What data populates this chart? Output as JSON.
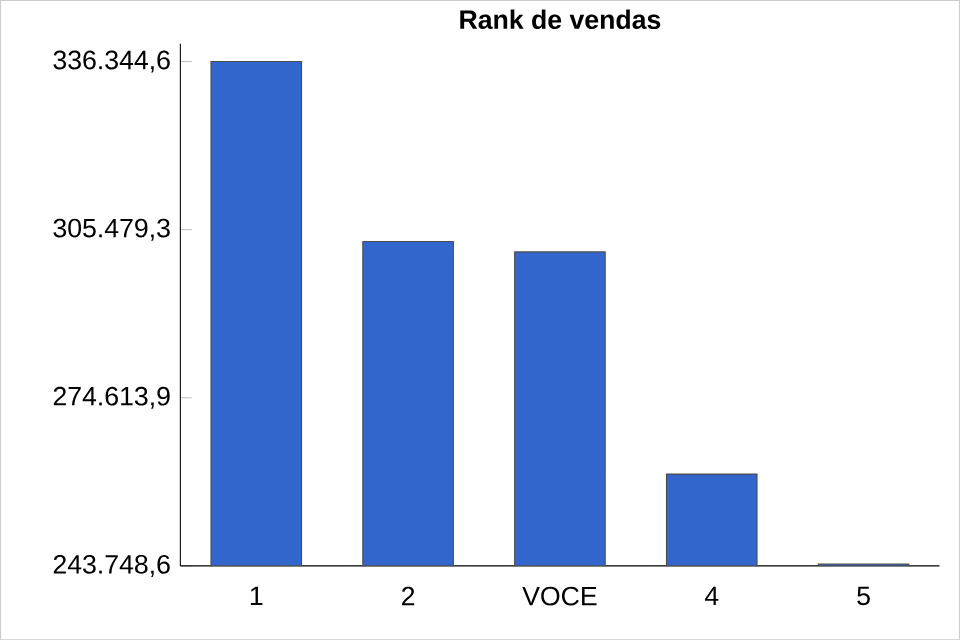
{
  "chart_data": {
    "type": "bar",
    "title": "Rank de vendas",
    "categories": [
      "1",
      "2",
      "VOCE",
      "4",
      "5"
    ],
    "values": [
      336344.6,
      303300,
      301400,
      260600,
      244100
    ],
    "color": "#3366cc",
    "ylim": [
      243748.6,
      339600
    ],
    "yticks": [
      {
        "value": 243748.6,
        "label": "243.748,6"
      },
      {
        "value": 274613.9,
        "label": "274.613,9"
      },
      {
        "value": 305479.3,
        "label": "305.479,3"
      },
      {
        "value": 336344.6,
        "label": "336.344,6"
      }
    ]
  }
}
